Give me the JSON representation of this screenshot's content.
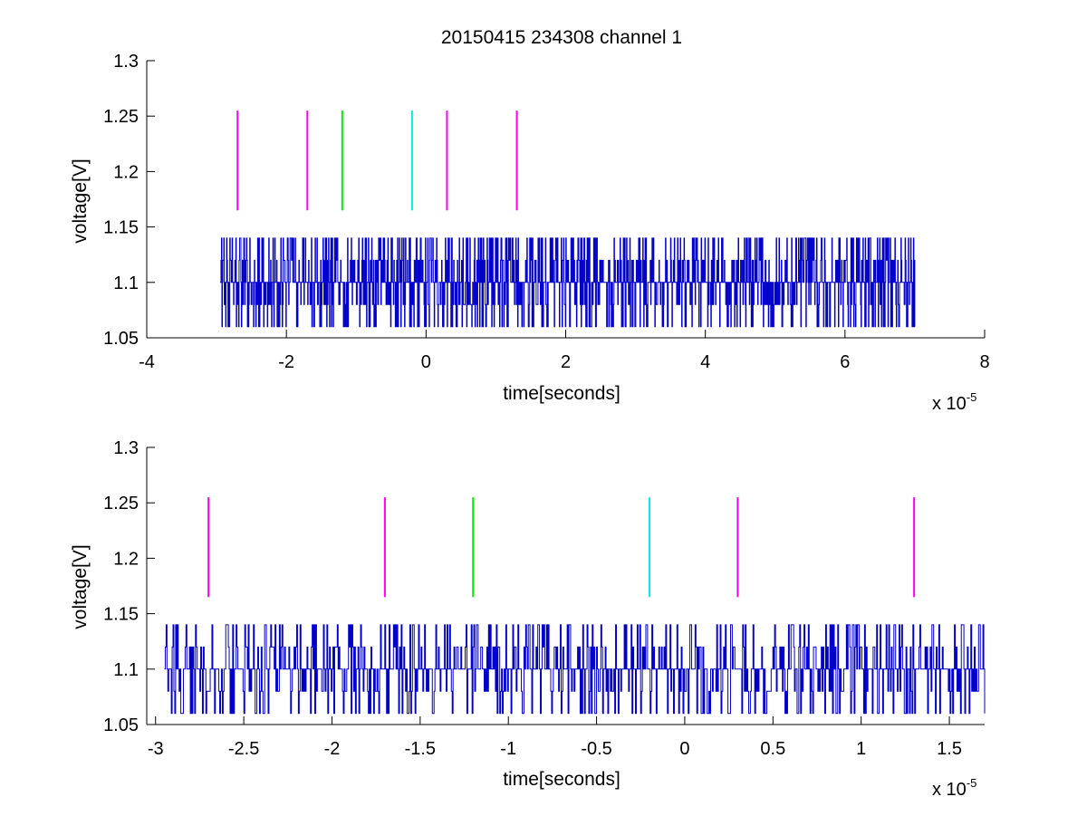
{
  "figure": {
    "title": "20150415 234308 channel 1"
  },
  "chart_data": [
    {
      "type": "line",
      "title": "20150415 234308 channel 1",
      "xlabel": "time[seconds]",
      "ylabel": "voltage[V]",
      "x_exponent_label": "x 10",
      "x_exponent": "-5",
      "xlim": [
        -4,
        8
      ],
      "ylim": [
        1.05,
        1.3
      ],
      "xticks": [
        -4,
        -2,
        0,
        2,
        4,
        6,
        8
      ],
      "xtick_labels": [
        "-4",
        "-2",
        "0",
        "2",
        "4",
        "6",
        "8"
      ],
      "yticks": [
        1.05,
        1.1,
        1.15,
        1.2,
        1.25,
        1.3
      ],
      "ytick_labels": [
        "1.05",
        "1.1",
        "1.15",
        "1.2",
        "1.25",
        "1.3"
      ],
      "grid": false,
      "signal": {
        "color": "#0000cc",
        "x_range": [
          -2.95,
          7.0
        ],
        "levels": [
          1.06,
          1.08,
          1.1,
          1.12,
          1.14
        ],
        "baseline": 1.1
      },
      "markers": [
        {
          "x": -2.7,
          "y_range": [
            1.165,
            1.255
          ],
          "color": "#ff00ff"
        },
        {
          "x": -1.7,
          "y_range": [
            1.165,
            1.255
          ],
          "color": "#ff00ff"
        },
        {
          "x": -1.2,
          "y_range": [
            1.165,
            1.255
          ],
          "color": "#00ee00"
        },
        {
          "x": -0.2,
          "y_range": [
            1.165,
            1.255
          ],
          "color": "#00eeee"
        },
        {
          "x": 0.3,
          "y_range": [
            1.165,
            1.255
          ],
          "color": "#ff00ff"
        },
        {
          "x": 1.3,
          "y_range": [
            1.165,
            1.255
          ],
          "color": "#ff00ff"
        }
      ]
    },
    {
      "type": "line",
      "title": "",
      "xlabel": "time[seconds]",
      "ylabel": "voltage[V]",
      "x_exponent_label": "x 10",
      "x_exponent": "-5",
      "xlim": [
        -3.05,
        1.7
      ],
      "ylim": [
        1.05,
        1.3
      ],
      "xticks": [
        -3,
        -2.5,
        -2,
        -1.5,
        -1,
        -0.5,
        0,
        0.5,
        1,
        1.5
      ],
      "xtick_labels": [
        "-3",
        "-2.5",
        "-2",
        "-1.5",
        "-1",
        "-0.5",
        "0",
        "0.5",
        "1",
        "1.5"
      ],
      "yticks": [
        1.05,
        1.1,
        1.15,
        1.2,
        1.25,
        1.3
      ],
      "ytick_labels": [
        "1.05",
        "1.1",
        "1.15",
        "1.2",
        "1.25",
        "1.3"
      ],
      "grid": false,
      "signal": {
        "color": "#0000cc",
        "x_range": [
          -2.95,
          1.7
        ],
        "levels": [
          1.06,
          1.08,
          1.1,
          1.12,
          1.14
        ],
        "baseline": 1.1
      },
      "markers": [
        {
          "x": -2.7,
          "y_range": [
            1.165,
            1.255
          ],
          "color": "#ff00ff"
        },
        {
          "x": -1.7,
          "y_range": [
            1.165,
            1.255
          ],
          "color": "#ff00ff"
        },
        {
          "x": -1.2,
          "y_range": [
            1.165,
            1.255
          ],
          "color": "#00ee00"
        },
        {
          "x": -0.2,
          "y_range": [
            1.165,
            1.255
          ],
          "color": "#00eeee"
        },
        {
          "x": 0.3,
          "y_range": [
            1.165,
            1.255
          ],
          "color": "#ff00ff"
        },
        {
          "x": 1.3,
          "y_range": [
            1.165,
            1.255
          ],
          "color": "#ff00ff"
        }
      ]
    }
  ]
}
